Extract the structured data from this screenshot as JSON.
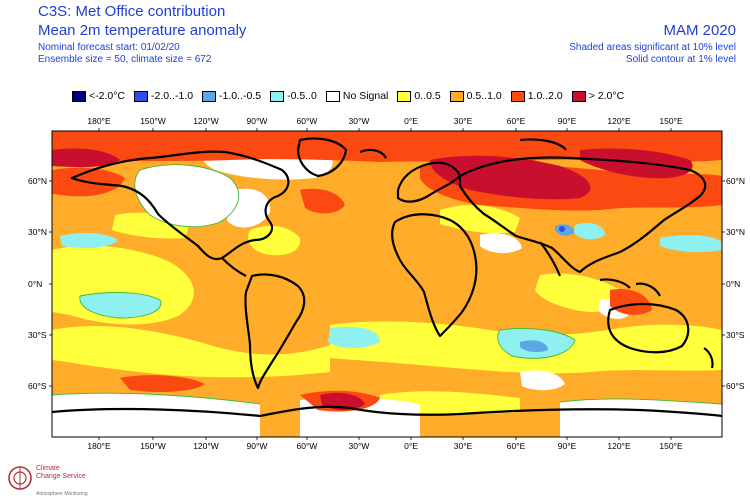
{
  "header": {
    "title": "C3S: Met Office contribution",
    "subtitle": "Mean 2m temperature anomaly",
    "forecast_start": "Nominal forecast start: 01/02/20",
    "ensemble": "Ensemble size = 50, climate size = 672",
    "season": "MAM 2020",
    "significance_shaded": "Shaded areas significant at 10% level",
    "significance_contour": "Solid contour at 1% level"
  },
  "legend": [
    {
      "label": "<-2.0°C",
      "color": "#00007a"
    },
    {
      "label": "-2.0..-1.0",
      "color": "#2f4de8"
    },
    {
      "label": "-1.0..-0.5",
      "color": "#5ea5e6"
    },
    {
      "label": "-0.5..0",
      "color": "#8ff0f0"
    },
    {
      "label": "No Signal",
      "color": "#ffffff"
    },
    {
      "label": "0..0.5",
      "color": "#ffff3c"
    },
    {
      "label": "0.5..1.0",
      "color": "#ffac2a"
    },
    {
      "label": "1.0..2.0",
      "color": "#fa4a12"
    },
    {
      "label": "> 2.0°C",
      "color": "#c8102e"
    }
  ],
  "axes": {
    "lon_labels": [
      "180°E",
      "150°W",
      "120°W",
      "90°W",
      "60°W",
      "30°W",
      "0°E",
      "30°E",
      "60°E",
      "90°E",
      "120°E",
      "150°E"
    ],
    "lat_labels": [
      "60°N",
      "30°N",
      "0°N",
      "30°S",
      "60°S"
    ]
  },
  "logo": {
    "line1": "Climate",
    "line2": "Change Service",
    "line3": "Atmosphere Monitoring"
  },
  "colors": {
    "text_blue": "#1f3fd6",
    "coast": "#000000",
    "contour_green": "#3db83d"
  }
}
